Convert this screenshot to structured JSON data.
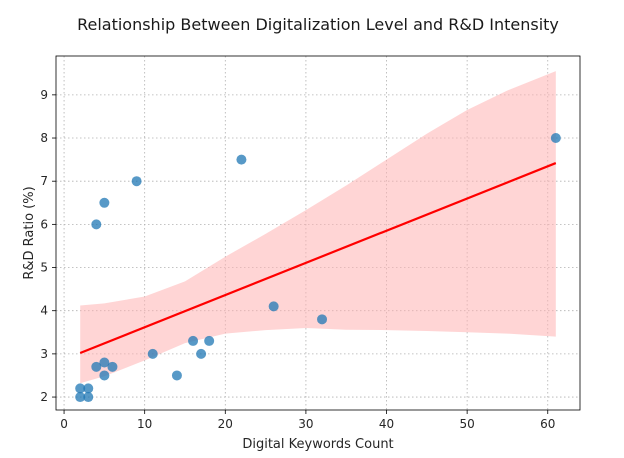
{
  "chart_data": {
    "type": "scatter",
    "title": "Relationship Between Digitalization Level and R&D Intensity",
    "xlabel": "Digital Keywords Count",
    "ylabel": "R&D Ratio (%)",
    "xlim": [
      -1,
      64
    ],
    "ylim": [
      1.7,
      9.9
    ],
    "xticks": [
      0,
      10,
      20,
      30,
      40,
      50,
      60
    ],
    "yticks": [
      2,
      3,
      4,
      5,
      6,
      7,
      8,
      9
    ],
    "grid": true,
    "points": [
      {
        "x": 2,
        "y": 2.0
      },
      {
        "x": 2,
        "y": 2.2
      },
      {
        "x": 3,
        "y": 2.0
      },
      {
        "x": 3,
        "y": 2.2
      },
      {
        "x": 4,
        "y": 2.7
      },
      {
        "x": 4,
        "y": 6.0
      },
      {
        "x": 5,
        "y": 2.5
      },
      {
        "x": 5,
        "y": 2.8
      },
      {
        "x": 5,
        "y": 6.5
      },
      {
        "x": 6,
        "y": 2.7
      },
      {
        "x": 9,
        "y": 7.0
      },
      {
        "x": 11,
        "y": 3.0
      },
      {
        "x": 14,
        "y": 2.5
      },
      {
        "x": 16,
        "y": 3.3
      },
      {
        "x": 17,
        "y": 3.0
      },
      {
        "x": 18,
        "y": 3.3
      },
      {
        "x": 22,
        "y": 7.5
      },
      {
        "x": 26,
        "y": 4.1
      },
      {
        "x": 32,
        "y": 3.8
      },
      {
        "x": 61,
        "y": 8.0
      }
    ],
    "regression_line": {
      "x": [
        2,
        61
      ],
      "y": [
        3.02,
        7.42
      ]
    },
    "confidence_band": {
      "x": [
        2,
        5,
        10,
        15,
        20,
        25,
        30,
        35,
        40,
        45,
        50,
        55,
        61
      ],
      "upper": [
        4.12,
        4.17,
        4.33,
        4.68,
        5.25,
        5.78,
        6.33,
        6.9,
        7.5,
        8.1,
        8.65,
        9.1,
        9.55
      ],
      "lower": [
        2.32,
        2.48,
        2.85,
        3.25,
        3.47,
        3.55,
        3.6,
        3.56,
        3.55,
        3.53,
        3.5,
        3.47,
        3.4
      ]
    },
    "colors": {
      "points": "#1f77b4",
      "line": "#ff0000",
      "band": "#ffb3b3",
      "grid": "#b0b0b0"
    }
  }
}
